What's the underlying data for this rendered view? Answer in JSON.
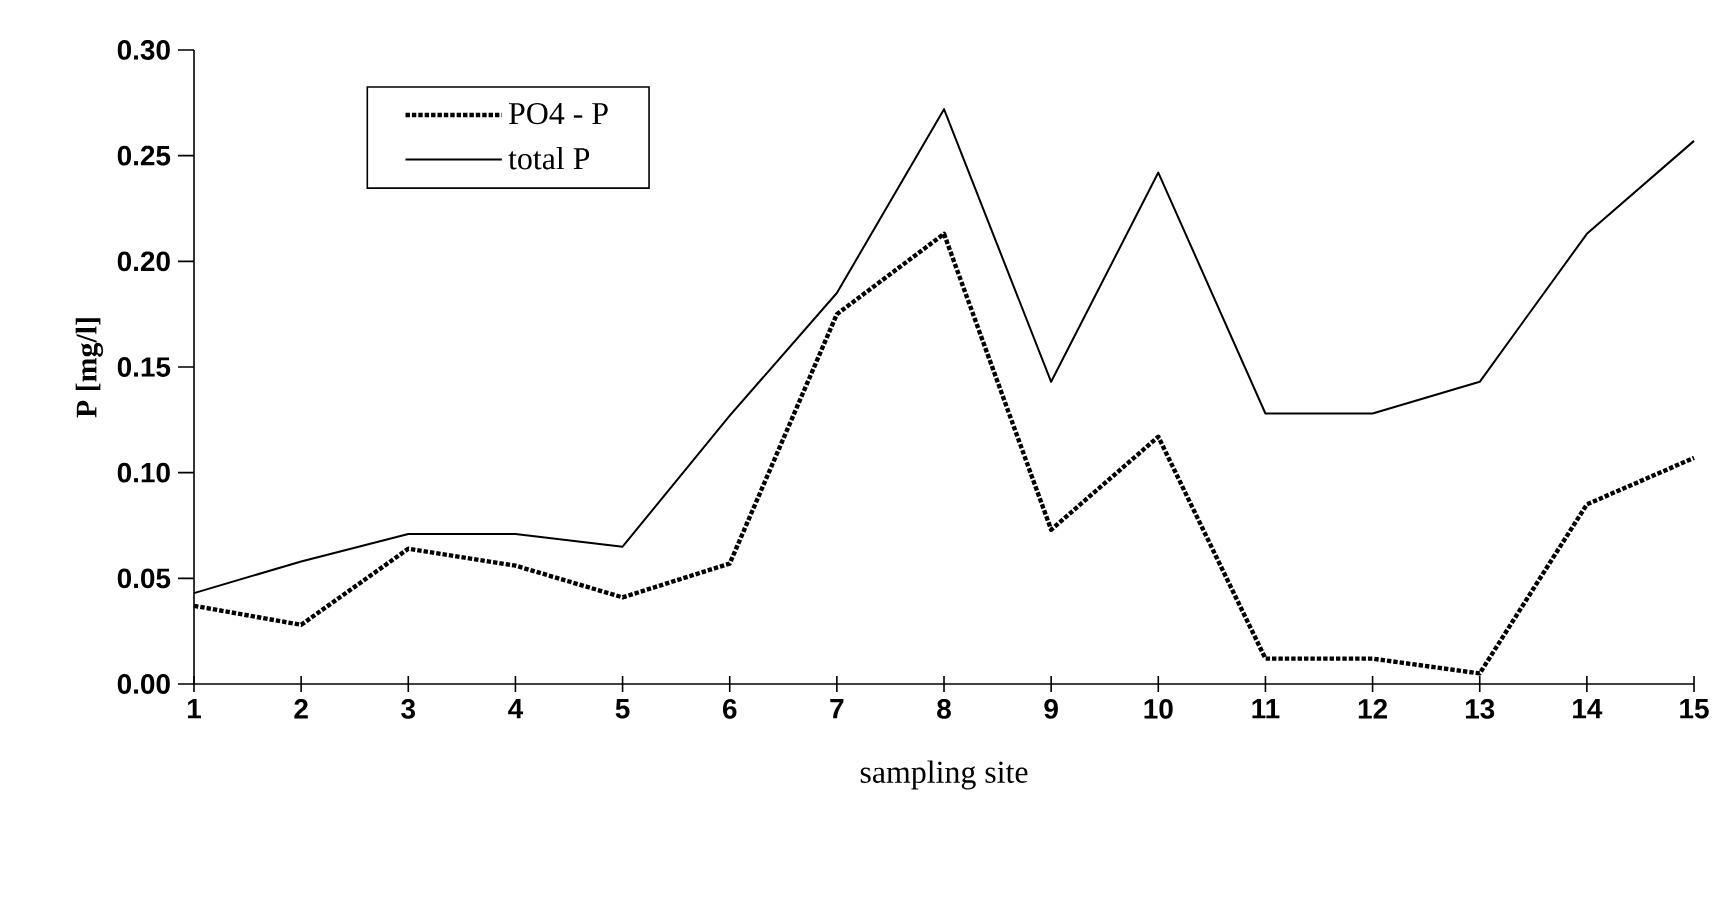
{
  "chart_data": {
    "type": "line",
    "xlabel": "sampling site",
    "ylabel": "P  [mg/l]",
    "x": [
      1,
      2,
      3,
      4,
      5,
      6,
      7,
      8,
      9,
      10,
      11,
      12,
      13,
      14,
      15
    ],
    "series": [
      {
        "name": "PO4 - P",
        "color": "#000000",
        "line_style": "dotted",
        "values": [
          0.037,
          0.028,
          0.064,
          0.056,
          0.041,
          0.057,
          0.175,
          0.213,
          0.073,
          0.117,
          0.012,
          0.012,
          0.005,
          0.085,
          0.107
        ]
      },
      {
        "name": "total P",
        "color": "#000000",
        "line_style": "solid",
        "values": [
          0.043,
          0.058,
          0.071,
          0.071,
          0.065,
          0.127,
          0.185,
          0.272,
          0.143,
          0.242,
          0.128,
          0.128,
          0.143,
          0.213,
          0.257
        ]
      }
    ],
    "xlim": [
      1,
      15
    ],
    "xticks": [
      1,
      2,
      3,
      4,
      5,
      6,
      7,
      8,
      9,
      10,
      11,
      12,
      13,
      14,
      15
    ],
    "ylim": [
      0,
      0.3
    ],
    "yticks": [
      {
        "value": 0,
        "label": "0.00"
      },
      {
        "value": 0.05,
        "label": "0.05"
      },
      {
        "value": 0.1,
        "label": "0.10"
      },
      {
        "value": 0.15,
        "label": "0.15"
      },
      {
        "value": 0.2,
        "label": "0.20"
      },
      {
        "value": 0.25,
        "label": "0.25"
      },
      {
        "value": 0.3,
        "label": "0.30"
      }
    ],
    "legend": "top left",
    "grid": false,
    "marker": "none"
  }
}
